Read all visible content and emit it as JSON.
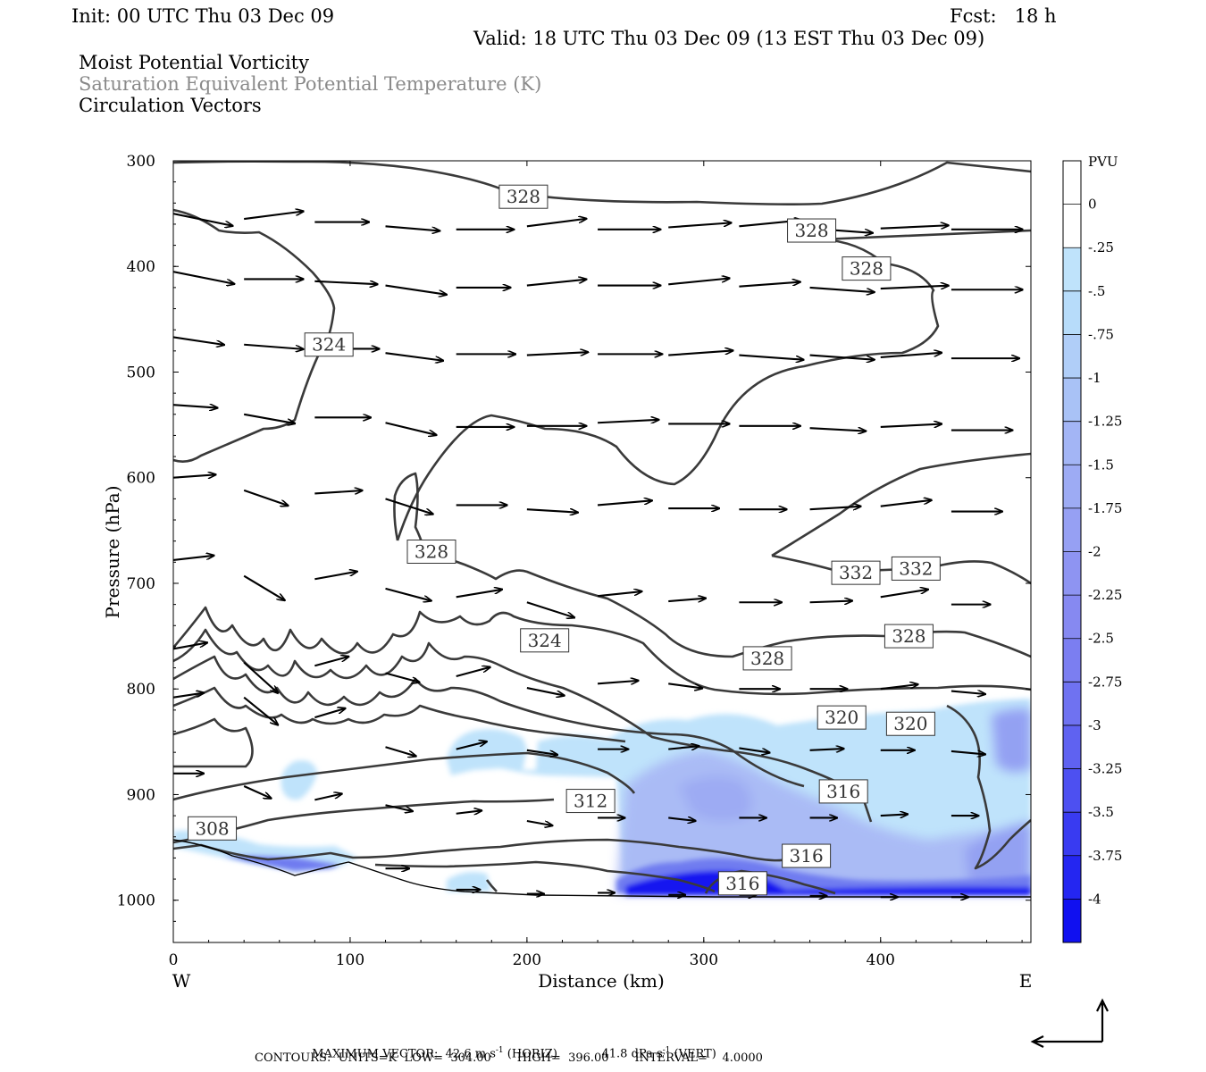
{
  "header": {
    "init": "Init: 00 UTC Thu 03 Dec 09",
    "fcst": "Fcst:   18 h",
    "valid": "Valid: 18 UTC Thu 03 Dec 09 (13 EST Thu 03 Dec 09)",
    "field1": "Moist Potential Vorticity",
    "field2": "Saturation Equivalent Potential Temperature (K)",
    "field3": "Circulation Vectors"
  },
  "footer": {
    "max_vector_label": "MAXIMUM VECTOR:",
    "horiz": "42.6 m s",
    "horiz_unit": "(HORIZ)",
    "vert": "41.8 dPa s",
    "vert_unit": "(VERT)",
    "contours": "CONTOURS:  UNITS=K  LOW=  304.00       HIGH=  396.00       INTERVAL=    4.0000",
    "exp": "-1"
  },
  "colors": {
    "contour": "#3a3a3a",
    "shade_light": "#bfe3fb",
    "shade_mid": "#a8b7f5",
    "shade_deep": "#6f7cf0",
    "shade_max": "#1212f0"
  },
  "chart_data": {
    "type": "heatmap",
    "title": "Moist Potential Vorticity",
    "xlabel": "Distance (km)",
    "ylabel": "Pressure (hPa)",
    "xlim": [
      0,
      485
    ],
    "ylim": [
      1040,
      300
    ],
    "x_ticks": [
      "0",
      "100",
      "200",
      "300",
      "400"
    ],
    "x_tick_values": [
      0,
      100,
      200,
      300,
      400
    ],
    "y_ticks": [
      "300",
      "400",
      "500",
      "600",
      "700",
      "800",
      "900",
      "1000"
    ],
    "y_tick_values": [
      300,
      400,
      500,
      600,
      700,
      800,
      900,
      1000
    ],
    "west_label": "W",
    "east_label": "E",
    "colorbar": {
      "unit": "PVU",
      "labels": [
        "0",
        "-.25",
        "-.5",
        "-.75",
        "-1",
        "-1.25",
        "-1.5",
        "-1.75",
        "-2",
        "-2.25",
        "-2.5",
        "-2.75",
        "-3",
        "-3.25",
        "-3.5",
        "-3.75",
        "-4"
      ],
      "fills": [
        "#ffffff",
        "#ffffff",
        "#bfe3fb",
        "#b7dcfa",
        "#b0cef8",
        "#a9c2f6",
        "#a3b5f5",
        "#9dabf4",
        "#96a0f3",
        "#8e94f2",
        "#8689f1",
        "#7b7ef1",
        "#6f72f1",
        "#5f62f1",
        "#4d50f1",
        "#393bf1",
        "#2426f1",
        "#1010f0"
      ]
    },
    "contour_labels": [
      {
        "text": "328",
        "x": 198,
        "p": 334
      },
      {
        "text": "328",
        "x": 361,
        "p": 366
      },
      {
        "text": "328",
        "x": 392,
        "p": 402
      },
      {
        "text": "324",
        "x": 88,
        "p": 474
      },
      {
        "text": "328",
        "x": 146,
        "p": 670
      },
      {
        "text": "332",
        "x": 386,
        "p": 690
      },
      {
        "text": "332",
        "x": 420,
        "p": 686
      },
      {
        "text": "324",
        "x": 210,
        "p": 754
      },
      {
        "text": "328",
        "x": 336,
        "p": 771
      },
      {
        "text": "328",
        "x": 416,
        "p": 750
      },
      {
        "text": "320",
        "x": 378,
        "p": 827
      },
      {
        "text": "320",
        "x": 417,
        "p": 833
      },
      {
        "text": "316",
        "x": 379,
        "p": 897
      },
      {
        "text": "312",
        "x": 236,
        "p": 906
      },
      {
        "text": "308",
        "x": 22,
        "p": 932
      },
      {
        "text": "316",
        "x": 358,
        "p": 958
      },
      {
        "text": "316",
        "x": 322,
        "p": 984
      }
    ],
    "vectors": [
      {
        "x": 0,
        "p": 350,
        "u": 35,
        "v": 8
      },
      {
        "x": 40,
        "p": 355,
        "u": 35,
        "v": -5
      },
      {
        "x": 80,
        "p": 358,
        "u": 32,
        "v": 0
      },
      {
        "x": 120,
        "p": 362,
        "u": 32,
        "v": 3
      },
      {
        "x": 160,
        "p": 365,
        "u": 34,
        "v": 0
      },
      {
        "x": 200,
        "p": 362,
        "u": 35,
        "v": -5
      },
      {
        "x": 240,
        "p": 365,
        "u": 37,
        "v": 0
      },
      {
        "x": 280,
        "p": 363,
        "u": 37,
        "v": -3
      },
      {
        "x": 320,
        "p": 362,
        "u": 37,
        "v": -4
      },
      {
        "x": 360,
        "p": 364,
        "u": 37,
        "v": 3
      },
      {
        "x": 400,
        "p": 364,
        "u": 40,
        "v": -2
      },
      {
        "x": 440,
        "p": 365,
        "u": 42,
        "v": 0
      },
      {
        "x": 0,
        "p": 405,
        "u": 36,
        "v": 8
      },
      {
        "x": 40,
        "p": 412,
        "u": 35,
        "v": 0
      },
      {
        "x": 80,
        "p": 414,
        "u": 37,
        "v": 2
      },
      {
        "x": 120,
        "p": 418,
        "u": 36,
        "v": 6
      },
      {
        "x": 160,
        "p": 420,
        "u": 32,
        "v": 0
      },
      {
        "x": 200,
        "p": 418,
        "u": 35,
        "v": -4
      },
      {
        "x": 240,
        "p": 418,
        "u": 37,
        "v": 0
      },
      {
        "x": 280,
        "p": 417,
        "u": 36,
        "v": -4
      },
      {
        "x": 320,
        "p": 419,
        "u": 36,
        "v": -3
      },
      {
        "x": 360,
        "p": 420,
        "u": 38,
        "v": 3
      },
      {
        "x": 400,
        "p": 421,
        "u": 40,
        "v": -2
      },
      {
        "x": 440,
        "p": 422,
        "u": 42,
        "v": 0
      },
      {
        "x": 0,
        "p": 467,
        "u": 30,
        "v": 5
      },
      {
        "x": 40,
        "p": 474,
        "u": 35,
        "v": 3
      },
      {
        "x": 80,
        "p": 478,
        "u": 38,
        "v": 0
      },
      {
        "x": 120,
        "p": 482,
        "u": 34,
        "v": 5
      },
      {
        "x": 160,
        "p": 483,
        "u": 35,
        "v": 0
      },
      {
        "x": 200,
        "p": 484,
        "u": 36,
        "v": -2
      },
      {
        "x": 240,
        "p": 483,
        "u": 38,
        "v": 0
      },
      {
        "x": 280,
        "p": 484,
        "u": 38,
        "v": -3
      },
      {
        "x": 320,
        "p": 484,
        "u": 38,
        "v": 3
      },
      {
        "x": 360,
        "p": 484,
        "u": 38,
        "v": 3
      },
      {
        "x": 400,
        "p": 486,
        "u": 36,
        "v": -3
      },
      {
        "x": 440,
        "p": 487,
        "u": 40,
        "v": 0
      },
      {
        "x": 0,
        "p": 531,
        "u": 26,
        "v": 2
      },
      {
        "x": 40,
        "p": 540,
        "u": 30,
        "v": 6
      },
      {
        "x": 80,
        "p": 543,
        "u": 33,
        "v": 0
      },
      {
        "x": 120,
        "p": 548,
        "u": 30,
        "v": 8
      },
      {
        "x": 160,
        "p": 552,
        "u": 34,
        "v": 0
      },
      {
        "x": 200,
        "p": 551,
        "u": 35,
        "v": 0
      },
      {
        "x": 240,
        "p": 548,
        "u": 36,
        "v": -2
      },
      {
        "x": 280,
        "p": 549,
        "u": 36,
        "v": 0
      },
      {
        "x": 320,
        "p": 551,
        "u": 36,
        "v": 0
      },
      {
        "x": 360,
        "p": 553,
        "u": 33,
        "v": 2
      },
      {
        "x": 400,
        "p": 552,
        "u": 36,
        "v": -2
      },
      {
        "x": 440,
        "p": 555,
        "u": 36,
        "v": 0
      },
      {
        "x": 0,
        "p": 600,
        "u": 25,
        "v": -2
      },
      {
        "x": 40,
        "p": 612,
        "u": 26,
        "v": 10
      },
      {
        "x": 80,
        "p": 615,
        "u": 28,
        "v": -2
      },
      {
        "x": 120,
        "p": 620,
        "u": 28,
        "v": 10
      },
      {
        "x": 160,
        "p": 626,
        "u": 30,
        "v": 0
      },
      {
        "x": 200,
        "p": 630,
        "u": 30,
        "v": 2
      },
      {
        "x": 240,
        "p": 626,
        "u": 32,
        "v": -3
      },
      {
        "x": 280,
        "p": 629,
        "u": 30,
        "v": 0
      },
      {
        "x": 320,
        "p": 630,
        "u": 28,
        "v": 0
      },
      {
        "x": 360,
        "p": 630,
        "u": 30,
        "v": -2
      },
      {
        "x": 400,
        "p": 627,
        "u": 30,
        "v": -4
      },
      {
        "x": 440,
        "p": 632,
        "u": 30,
        "v": 0
      },
      {
        "x": 0,
        "p": 678,
        "u": 24,
        "v": -3
      },
      {
        "x": 40,
        "p": 693,
        "u": 24,
        "v": 16
      },
      {
        "x": 80,
        "p": 696,
        "u": 25,
        "v": -5
      },
      {
        "x": 120,
        "p": 705,
        "u": 27,
        "v": 8
      },
      {
        "x": 160,
        "p": 713,
        "u": 27,
        "v": -5
      },
      {
        "x": 200,
        "p": 718,
        "u": 28,
        "v": 10
      },
      {
        "x": 240,
        "p": 712,
        "u": 26,
        "v": -3
      },
      {
        "x": 280,
        "p": 717,
        "u": 22,
        "v": -2
      },
      {
        "x": 320,
        "p": 718,
        "u": 25,
        "v": 0
      },
      {
        "x": 360,
        "p": 718,
        "u": 25,
        "v": -1
      },
      {
        "x": 400,
        "p": 713,
        "u": 28,
        "v": -5
      },
      {
        "x": 440,
        "p": 720,
        "u": 23,
        "v": 0
      },
      {
        "x": 0,
        "p": 762,
        "u": 20,
        "v": -4
      },
      {
        "x": 40,
        "p": 775,
        "u": 20,
        "v": 20
      },
      {
        "x": 80,
        "p": 778,
        "u": 20,
        "v": -6
      },
      {
        "x": 120,
        "p": 785,
        "u": 20,
        "v": 6
      },
      {
        "x": 160,
        "p": 788,
        "u": 20,
        "v": -6
      },
      {
        "x": 200,
        "p": 799,
        "u": 22,
        "v": 5
      },
      {
        "x": 240,
        "p": 795,
        "u": 24,
        "v": -2
      },
      {
        "x": 280,
        "p": 795,
        "u": 20,
        "v": 3
      },
      {
        "x": 320,
        "p": 800,
        "u": 24,
        "v": 0
      },
      {
        "x": 360,
        "p": 800,
        "u": 22,
        "v": 0
      },
      {
        "x": 400,
        "p": 800,
        "u": 22,
        "v": -3
      },
      {
        "x": 440,
        "p": 802,
        "u": 20,
        "v": 2
      },
      {
        "x": 0,
        "p": 808,
        "u": 18,
        "v": -3
      },
      {
        "x": 40,
        "p": 808,
        "u": 20,
        "v": 18
      },
      {
        "x": 80,
        "p": 827,
        "u": 18,
        "v": -6
      },
      {
        "x": 120,
        "p": 855,
        "u": 18,
        "v": 6
      },
      {
        "x": 160,
        "p": 857,
        "u": 18,
        "v": -5
      },
      {
        "x": 200,
        "p": 858,
        "u": 18,
        "v": 3
      },
      {
        "x": 240,
        "p": 857,
        "u": 18,
        "v": 0
      },
      {
        "x": 280,
        "p": 857,
        "u": 18,
        "v": -2
      },
      {
        "x": 320,
        "p": 856,
        "u": 18,
        "v": 3
      },
      {
        "x": 360,
        "p": 858,
        "u": 20,
        "v": -1
      },
      {
        "x": 400,
        "p": 858,
        "u": 20,
        "v": 0
      },
      {
        "x": 440,
        "p": 859,
        "u": 20,
        "v": 2
      },
      {
        "x": 0,
        "p": 880,
        "u": 18,
        "v": 0
      },
      {
        "x": 40,
        "p": 892,
        "u": 16,
        "v": 8
      },
      {
        "x": 80,
        "p": 905,
        "u": 16,
        "v": -4
      },
      {
        "x": 120,
        "p": 910,
        "u": 16,
        "v": 4
      },
      {
        "x": 160,
        "p": 918,
        "u": 15,
        "v": -2
      },
      {
        "x": 200,
        "p": 925,
        "u": 15,
        "v": 3
      },
      {
        "x": 240,
        "p": 922,
        "u": 16,
        "v": 0
      },
      {
        "x": 280,
        "p": 922,
        "u": 16,
        "v": 2
      },
      {
        "x": 320,
        "p": 922,
        "u": 16,
        "v": 0
      },
      {
        "x": 360,
        "p": 922,
        "u": 16,
        "v": 0
      },
      {
        "x": 400,
        "p": 920,
        "u": 16,
        "v": -1
      },
      {
        "x": 440,
        "p": 920,
        "u": 16,
        "v": 0
      },
      {
        "x": 120,
        "p": 970,
        "u": 14,
        "v": 0
      },
      {
        "x": 160,
        "p": 990,
        "u": 14,
        "v": 0
      },
      {
        "x": 200,
        "p": 994,
        "u": 10,
        "v": 0
      },
      {
        "x": 240,
        "p": 993,
        "u": 10,
        "v": 0
      },
      {
        "x": 280,
        "p": 995,
        "u": 10,
        "v": 0
      },
      {
        "x": 320,
        "p": 995,
        "u": 10,
        "v": 0
      },
      {
        "x": 360,
        "p": 996,
        "u": 10,
        "v": 0
      },
      {
        "x": 400,
        "p": 997,
        "u": 10,
        "v": 0
      },
      {
        "x": 440,
        "p": 997,
        "u": 10,
        "v": 0
      }
    ]
  }
}
